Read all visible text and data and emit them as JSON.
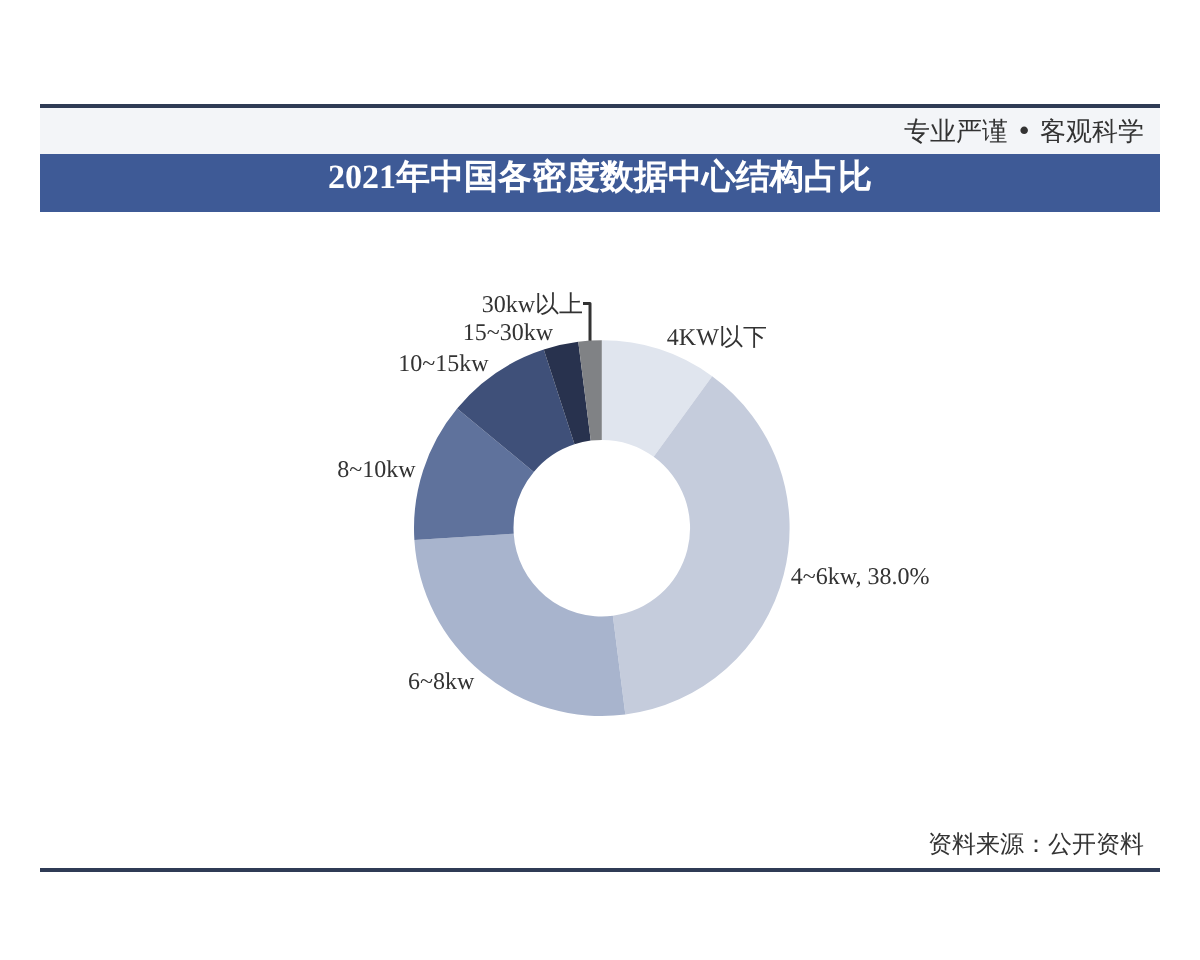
{
  "chart_data": {
    "type": "donut",
    "title": "2021年中国各密度数据中心结构占比",
    "categories": [
      "4KW以下",
      "4~6kw",
      "6~8kw",
      "8~10kw",
      "10~15kw",
      "15~30kw",
      "30kw以上"
    ],
    "values": [
      10,
      38,
      26,
      12,
      9,
      3,
      2
    ],
    "colors": [
      "#e0e5ee",
      "#c5ccdc",
      "#a8b4cd",
      "#5f729c",
      "#3f5079",
      "#28324e",
      "#808285"
    ],
    "value_labels": [
      null,
      "38.0%",
      null,
      null,
      null,
      null,
      null
    ],
    "legend": false,
    "annotations": [
      "专业严谨 • 客观科学",
      "资料来源：公开资料"
    ]
  }
}
